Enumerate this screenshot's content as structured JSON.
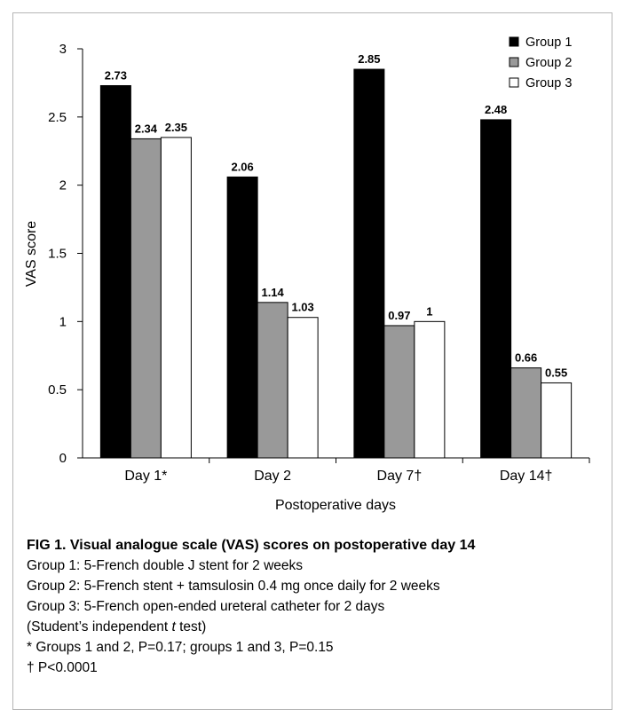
{
  "chart_data": {
    "type": "bar",
    "categories": [
      "Day 1*",
      "Day 2",
      "Day 7†",
      "Day 14†"
    ],
    "series": [
      {
        "name": "Group 1",
        "values": [
          2.73,
          2.06,
          2.85,
          2.48
        ],
        "color": "#000000"
      },
      {
        "name": "Group 2",
        "values": [
          2.34,
          1.14,
          0.97,
          0.66
        ],
        "color": "#999999"
      },
      {
        "name": "Group 3",
        "values": [
          2.35,
          1.03,
          1,
          0.55
        ],
        "color": "#ffffff"
      }
    ],
    "data_labels": [
      [
        "2.73",
        "2.34",
        "2.35"
      ],
      [
        "2.06",
        "1.14",
        "1.03"
      ],
      [
        "2.85",
        "0.97",
        "1"
      ],
      [
        "2.48",
        "0.66",
        "0.55"
      ]
    ],
    "xlabel": "Postoperative days",
    "ylabel": "VAS score",
    "ylim": [
      0,
      3
    ],
    "yticks": [
      0,
      0.5,
      1,
      1.5,
      2,
      2.5,
      3
    ],
    "ytick_labels": [
      "0",
      "0.5",
      "1",
      "1.5",
      "2",
      "2.5",
      "3"
    ],
    "grid": false,
    "legend_position": "top-right"
  },
  "caption": {
    "title": "FIG 1. Visual analogue scale (VAS) scores on postoperative day 14",
    "group1": "Group 1: 5-French double J stent for 2 weeks",
    "group2": "Group 2: 5-French stent + tamsulosin 0.4 mg once daily for 2 weeks",
    "group3": "Group 3: 5-French open-ended ureteral catheter for 2 days",
    "test_prefix": "(Student’s independent ",
    "test_italic": "t",
    "test_suffix": " test)",
    "note_star": "*  Groups 1 and 2, P=0.17; groups 1 and 3, P=0.15",
    "note_dagger": "†  P<0.0001"
  }
}
